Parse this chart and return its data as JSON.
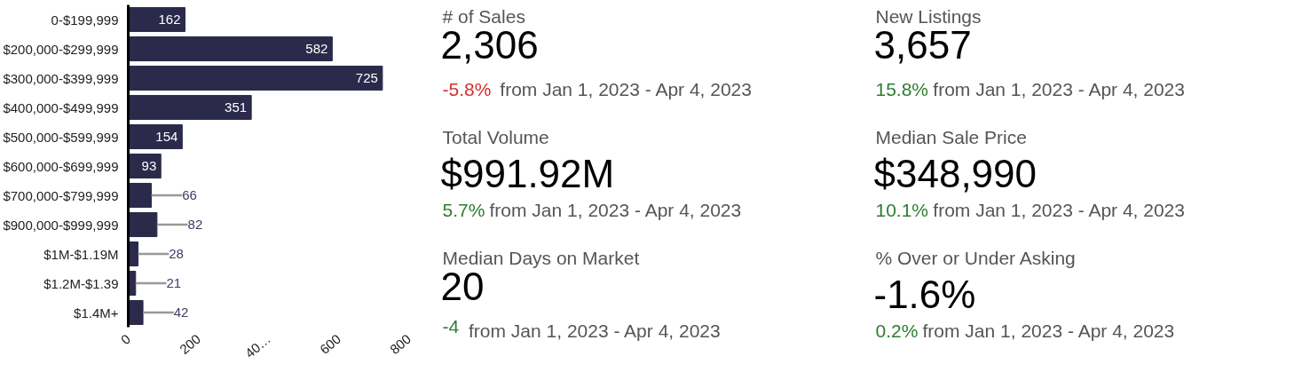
{
  "chart_data": [
    {
      "type": "bar",
      "orientation": "horizontal",
      "categories": [
        "0-$199,999",
        "$200,000-$299,999",
        "$300,000-$399,999",
        "$400,000-$499,999",
        "$500,000-$599,999",
        "$600,000-$699,999",
        "$700,000-$799,999",
        "$900,000-$999,999",
        "$1M-$1.19M",
        "$1.2M-$1.39",
        "$1.4M+"
      ],
      "values": [
        162,
        582,
        725,
        351,
        154,
        93,
        66,
        82,
        28,
        21,
        42
      ],
      "color": "#2c2a4b",
      "xlim": [
        0,
        800
      ],
      "xticks": [
        0,
        200,
        {
          "value": 400,
          "label": "40…"
        },
        600,
        800
      ],
      "data_labels": true,
      "grid": false
    },
    {
      "type": "other",
      "title": "# of Sales",
      "annotations": [
        "2,306",
        "-5.8%",
        "from Jan 1, 2023 - Apr 4, 2023"
      ],
      "colors": [
        "#555555",
        "#000000",
        "#d32f2f",
        "#555555"
      ]
    },
    {
      "type": "other",
      "title": "New Listings",
      "annotations": [
        "3,657",
        "15.8%",
        "from Jan 1, 2023 - Apr 4, 2023"
      ],
      "colors": [
        "#555555",
        "#000000",
        "#2e7d32",
        "#555555"
      ]
    },
    {
      "type": "other",
      "title": "Total Volume",
      "annotations": [
        "$991.92M",
        "5.7%",
        "from Jan 1, 2023 - Apr 4, 2023"
      ],
      "colors": [
        "#555555",
        "#000000",
        "#2e7d32",
        "#555555"
      ]
    },
    {
      "type": "other",
      "title": "Median Sale Price",
      "annotations": [
        "$348,990",
        "10.1%",
        "from Jan 1, 2023 - Apr 4, 2023"
      ],
      "colors": [
        "#555555",
        "#000000",
        "#2e7d32",
        "#555555"
      ]
    },
    {
      "type": "other",
      "title": "Median Days on Market",
      "annotations": [
        "20",
        "-4",
        "from Jan 1, 2023 - Apr 4, 2023"
      ],
      "colors": [
        "#555555",
        "#000000",
        "#2e7d32",
        "#555555"
      ]
    },
    {
      "type": "other",
      "title": "% Over or Under Asking",
      "annotations": [
        "-1.6%",
        "0.2%",
        "from Jan 1, 2023 - Apr 4, 2023"
      ],
      "colors": [
        "#555555",
        "#000000",
        "#2e7d32",
        "#555555"
      ]
    }
  ]
}
